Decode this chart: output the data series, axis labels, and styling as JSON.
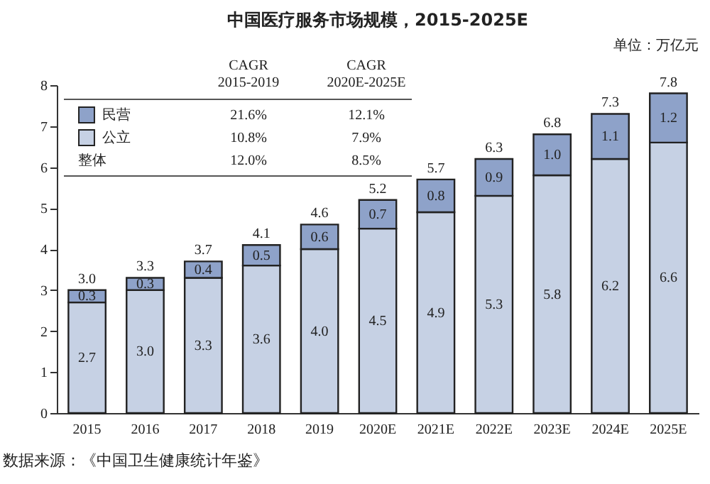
{
  "chart_data": {
    "type": "bar",
    "title": "中国医疗服务市场规模，2015-2025E",
    "categories": [
      "2015",
      "2016",
      "2017",
      "2018",
      "2019",
      "2020E",
      "2021E",
      "2022E",
      "2023E",
      "2024E",
      "2025E"
    ],
    "stacked": true,
    "series": [
      {
        "name": "公立",
        "color": "#c6d1e4",
        "values": [
          2.7,
          3.0,
          3.3,
          3.6,
          4.0,
          4.5,
          4.9,
          5.3,
          5.8,
          6.2,
          6.6
        ],
        "value_labels": [
          "2.7",
          "3.0",
          "3.3",
          "3.6",
          "4.0",
          "4.5",
          "4.9",
          "5.3",
          "5.8",
          "6.2",
          "6.6"
        ]
      },
      {
        "name": "民营",
        "color": "#8ea2c9",
        "values": [
          0.3,
          0.3,
          0.4,
          0.5,
          0.6,
          0.7,
          0.8,
          0.9,
          1.0,
          1.1,
          1.2
        ],
        "value_labels": [
          "0.3",
          "0.3",
          "0.4",
          "0.5",
          "0.6",
          "0.7",
          "0.8",
          "0.9",
          "1.0",
          "1.1",
          "1.2"
        ]
      }
    ],
    "totals": [
      "3.0",
      "3.3",
      "3.7",
      "4.1",
      "4.6",
      "5.2",
      "5.7",
      "6.3",
      "6.8",
      "7.3",
      "7.8"
    ],
    "ylim": [
      0,
      8
    ],
    "yticks": [
      0,
      1,
      2,
      3,
      4,
      5,
      6,
      7,
      8
    ],
    "grid": false,
    "legend": "top left",
    "annotations": [
      "CAGR 2015-2019",
      "CAGR 2020E-2025E",
      "21.6%",
      "12.1%",
      "10.8%",
      "7.9%",
      "整体",
      "12.0%",
      "8.5%",
      "单位：万亿元",
      "数据来源：《中国卫生健康统计年鉴》"
    ]
  }
}
